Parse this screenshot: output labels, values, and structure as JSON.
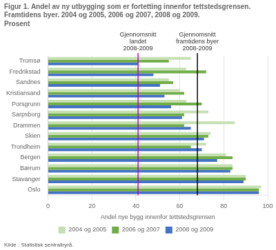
{
  "chart_data": {
    "type": "bar",
    "orientation": "horizontal",
    "title": "Figur 1. Andel av ny utbygging som er fortetting innenfor tettstedsgrensen. Framtidens byer. 2004 og 2005, 2006 og 2007, 2008 og 2009.",
    "subtitle": "Prosent",
    "xlabel": "Andel nye bygg innenfor tettstedsgrensen",
    "source": "Kilde : Statistisk sentralbyrå.",
    "categories": [
      "Oslo",
      "Stavanger",
      "Bærum",
      "Bergen",
      "Trondheim",
      "Skien",
      "Drammen",
      "Sarpsborg",
      "Porsgrunn",
      "Kristiansand",
      "Sandnes",
      "Fredrikstad",
      "Tromsø"
    ],
    "series": [
      {
        "name": "2004 og 2005",
        "color": "#c5e0b3",
        "values": [
          97,
          90,
          84,
          81,
          72,
          74,
          85,
          73,
          63,
          60,
          55,
          63,
          65
        ]
      },
      {
        "name": "2006 og 2007",
        "color": "#70ad47",
        "values": [
          96,
          90,
          84,
          84,
          65,
          73,
          62,
          62,
          70,
          62,
          57,
          72,
          55
        ]
      },
      {
        "name": "2008 og 2009",
        "color": "#4472c4",
        "values": [
          96,
          89,
          83,
          77,
          70,
          71,
          65,
          61,
          56,
          53,
          51,
          48,
          41
        ]
      }
    ],
    "xlim": [
      0,
      100
    ],
    "xticks": [
      0,
      20,
      40,
      60,
      80,
      100
    ],
    "grid": true,
    "legend": "bottom",
    "annotations": [
      {
        "text": "Gjennomsnitt\nlandet\n2008-2009",
        "x": 41,
        "color": "#c000c0"
      },
      {
        "text": "Gjennomsnitt\nframtidens byer\n2008-2009",
        "x": 68,
        "color": "#000000"
      }
    ]
  }
}
